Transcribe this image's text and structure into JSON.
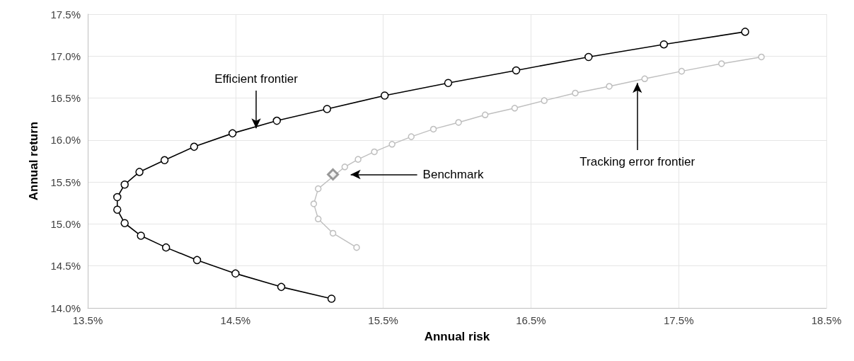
{
  "chart_data": {
    "type": "line",
    "xlabel": "Annual risk",
    "ylabel": "Annual return",
    "xlim": [
      13.5,
      18.5
    ],
    "xticks": [
      {
        "value": 13.5,
        "label": "13.5%"
      },
      {
        "value": 14.5,
        "label": "14.5%"
      },
      {
        "value": 15.5,
        "label": "15.5%"
      },
      {
        "value": 16.5,
        "label": "16.5%"
      },
      {
        "value": 17.5,
        "label": "17.5%"
      },
      {
        "value": 18.5,
        "label": "18.5%"
      }
    ],
    "ylim": [
      14.0,
      17.5
    ],
    "yticks": [
      {
        "value": 14.0,
        "label": "14.0%"
      },
      {
        "value": 14.5,
        "label": "14.5%"
      },
      {
        "value": 15.0,
        "label": "15.0%"
      },
      {
        "value": 15.5,
        "label": "15.5%"
      },
      {
        "value": 16.0,
        "label": "16.0%"
      },
      {
        "value": 16.5,
        "label": "16.5%"
      },
      {
        "value": 17.0,
        "label": "17.0%"
      },
      {
        "value": 17.5,
        "label": "17.5%"
      }
    ],
    "grid": true,
    "marker": "circle",
    "line_style": "solid",
    "series": [
      {
        "color": "#000000",
        "x": [
          15.15,
          14.81,
          14.5,
          14.24,
          14.03,
          13.86,
          13.75,
          13.7,
          13.7,
          13.75,
          13.85,
          14.02,
          14.22,
          14.48,
          14.78,
          15.12,
          15.51,
          15.94,
          16.4,
          16.89,
          17.4,
          17.95
        ],
        "values": [
          14.11,
          14.25,
          14.41,
          14.57,
          14.72,
          14.86,
          15.01,
          15.17,
          15.32,
          15.47,
          15.62,
          15.76,
          15.92,
          16.08,
          16.23,
          16.37,
          16.53,
          16.68,
          16.83,
          16.99,
          17.14,
          17.29
        ]
      },
      {
        "color": "#bfbfbf",
        "x": [
          15.32,
          15.16,
          15.06,
          15.03,
          15.06,
          15.24,
          15.33,
          15.44,
          15.56,
          15.69,
          15.84,
          16.01,
          16.19,
          16.39,
          16.59,
          16.8,
          17.03,
          17.27,
          17.52,
          17.79,
          18.06
        ],
        "values": [
          14.72,
          14.89,
          15.06,
          15.24,
          15.42,
          15.68,
          15.77,
          15.86,
          15.95,
          16.04,
          16.13,
          16.21,
          16.3,
          16.38,
          16.47,
          16.56,
          16.64,
          16.73,
          16.82,
          16.91,
          16.99
        ]
      },
      {
        "type": "scatter",
        "name": "Benchmark",
        "marker": "diamond",
        "color": "#808080",
        "x": [
          15.16
        ],
        "values": [
          15.59
        ]
      }
    ],
    "annotations": [
      {
        "text": "Efficient frontier",
        "x": 14.64,
        "y": 16.14
      },
      {
        "text": "Tracking error frontier",
        "x": 17.22,
        "y": 16.68
      }
    ]
  }
}
